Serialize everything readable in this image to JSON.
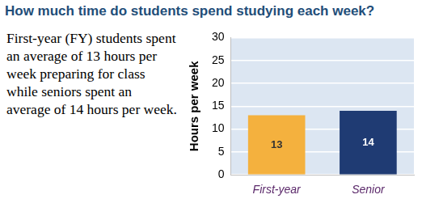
{
  "title": "How much time do students spend studying each week?",
  "text": "First-year (FY) students spent an average of 13 hours per week preparing for class while seniors spent an average of 14 hours per week.",
  "chart_data": {
    "type": "bar",
    "categories": [
      "First-year",
      "Senior"
    ],
    "values": [
      13,
      14
    ],
    "colors": [
      "#f4b13e",
      "#1f3b73"
    ],
    "y_label": "Hours per week",
    "ylim": [
      0,
      30
    ],
    "yticks": [
      0,
      5,
      10,
      15,
      20,
      25,
      30
    ],
    "grid": true,
    "data_labels": true
  }
}
